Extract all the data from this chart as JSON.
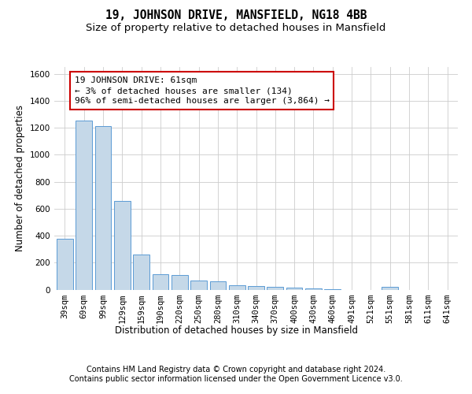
{
  "title": "19, JOHNSON DRIVE, MANSFIELD, NG18 4BB",
  "subtitle": "Size of property relative to detached houses in Mansfield",
  "xlabel": "Distribution of detached houses by size in Mansfield",
  "ylabel": "Number of detached properties",
  "annotation_text": "19 JOHNSON DRIVE: 61sqm\n← 3% of detached houses are smaller (134)\n96% of semi-detached houses are larger (3,864) →",
  "footnote1": "Contains HM Land Registry data © Crown copyright and database right 2024.",
  "footnote2": "Contains public sector information licensed under the Open Government Licence v3.0.",
  "categories": [
    "39sqm",
    "69sqm",
    "99sqm",
    "129sqm",
    "159sqm",
    "190sqm",
    "220sqm",
    "250sqm",
    "280sqm",
    "310sqm",
    "340sqm",
    "370sqm",
    "400sqm",
    "430sqm",
    "460sqm",
    "491sqm",
    "521sqm",
    "551sqm",
    "581sqm",
    "611sqm",
    "641sqm"
  ],
  "values": [
    375,
    1250,
    1210,
    660,
    260,
    115,
    110,
    65,
    60,
    35,
    25,
    18,
    15,
    10,
    4,
    0,
    0,
    18,
    0,
    0,
    0
  ],
  "bar_color": "#c5d8e8",
  "bar_edge_color": "#5b9bd5",
  "annotation_box_color": "#ffffff",
  "annotation_box_edge": "#cc0000",
  "ylim": [
    0,
    1650
  ],
  "yticks": [
    0,
    200,
    400,
    600,
    800,
    1000,
    1200,
    1400,
    1600
  ],
  "grid_color": "#cccccc",
  "title_fontsize": 10.5,
  "subtitle_fontsize": 9.5,
  "axis_label_fontsize": 8.5,
  "tick_fontsize": 7.5,
  "annotation_fontsize": 8.0,
  "footnote_fontsize": 7.0
}
